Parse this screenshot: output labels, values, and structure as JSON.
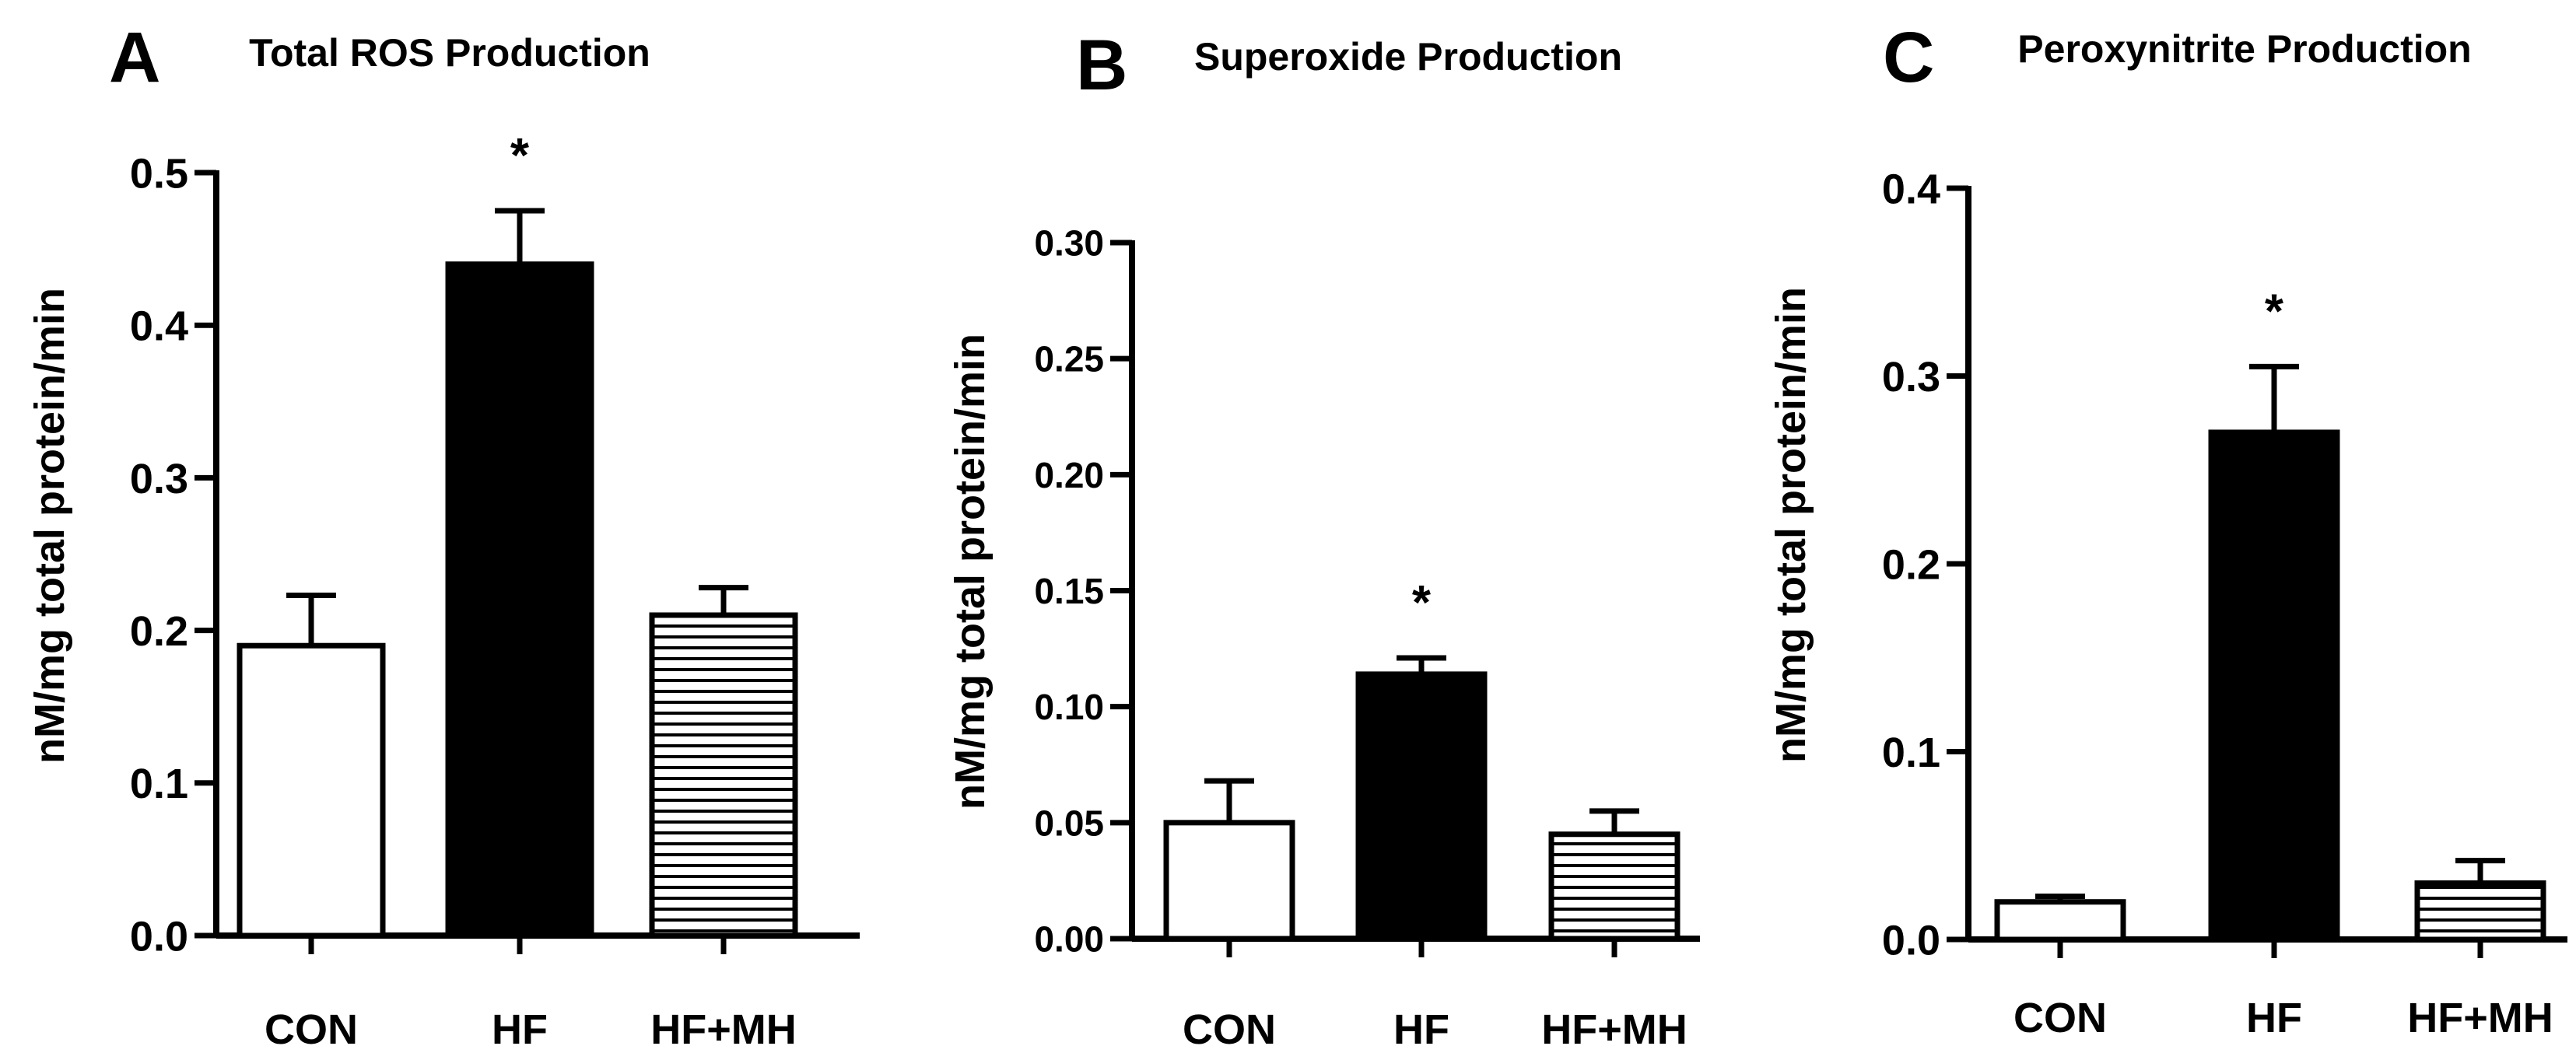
{
  "chart_data": [
    {
      "panel_letter": "A",
      "type": "bar",
      "title": "Total ROS Production",
      "ylabel": "nM/mg total protein/min",
      "xlabel": "",
      "categories": [
        "CON",
        "HF",
        "HF+MH"
      ],
      "values": [
        0.19,
        0.44,
        0.21
      ],
      "errors": [
        0.033,
        0.035,
        0.018
      ],
      "fills": [
        "white",
        "black",
        "hatched"
      ],
      "significant": [
        false,
        true,
        false
      ],
      "significance_marker": "*",
      "ylim": [
        0,
        0.5
      ],
      "yticks": [
        0.0,
        0.1,
        0.2,
        0.3,
        0.4,
        0.5
      ],
      "ytick_labels": [
        "0.0",
        "0.1",
        "0.2",
        "0.3",
        "0.4",
        "0.5"
      ],
      "grid": false
    },
    {
      "panel_letter": "B",
      "type": "bar",
      "title": "Superoxide Production",
      "ylabel": "nM/mg total protein/min",
      "xlabel": "",
      "categories": [
        "CON",
        "HF",
        "HF+MH"
      ],
      "values": [
        0.05,
        0.114,
        0.045
      ],
      "errors": [
        0.018,
        0.007,
        0.01
      ],
      "fills": [
        "white",
        "black",
        "hatched"
      ],
      "significant": [
        false,
        true,
        false
      ],
      "significance_marker": "*",
      "ylim": [
        0,
        0.3
      ],
      "yticks": [
        0.0,
        0.05,
        0.1,
        0.15,
        0.2,
        0.25,
        0.3
      ],
      "ytick_labels": [
        "0.00",
        "0.05",
        "0.10",
        "0.15",
        "0.20",
        "0.25",
        "0.30"
      ],
      "grid": false
    },
    {
      "panel_letter": "C",
      "type": "bar",
      "title": "Peroxynitrite Production",
      "ylabel": "nM/mg total protein/min",
      "xlabel": "",
      "categories": [
        "CON",
        "HF",
        "HF+MH"
      ],
      "values": [
        0.02,
        0.27,
        0.03
      ],
      "errors": [
        0.003,
        0.035,
        0.012
      ],
      "fills": [
        "white",
        "black",
        "hatched"
      ],
      "significant": [
        false,
        true,
        false
      ],
      "significance_marker": "*",
      "ylim": [
        0,
        0.4
      ],
      "yticks": [
        0.0,
        0.1,
        0.2,
        0.3,
        0.4
      ],
      "ytick_labels": [
        "0.0",
        "0.1",
        "0.2",
        "0.3",
        "0.4"
      ],
      "grid": false
    }
  ]
}
